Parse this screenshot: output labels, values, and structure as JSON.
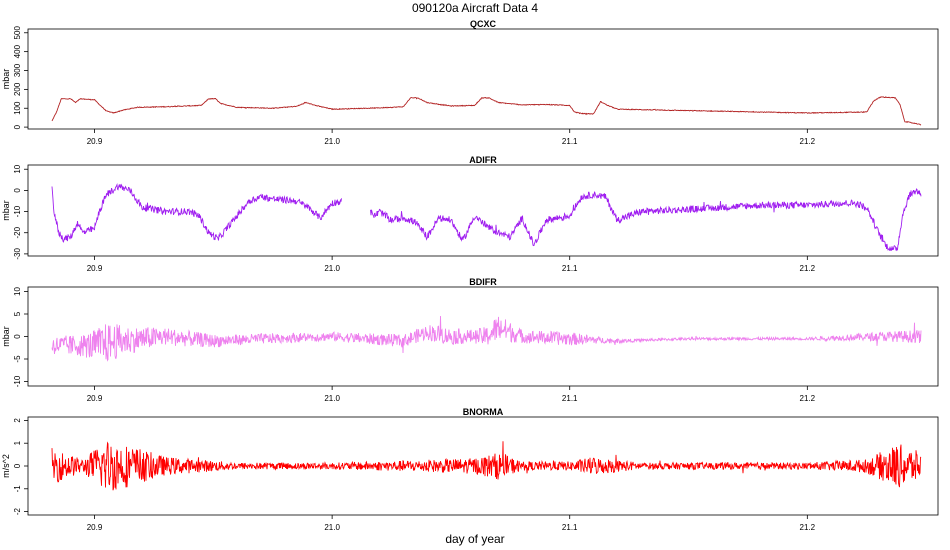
{
  "title": "090120a   Aircraft Data 4",
  "chart_data": {
    "type": "line",
    "xlabel": "day of year",
    "x_ticks": [
      20.9,
      21.0,
      21.1,
      21.2
    ],
    "x_tick_labels": [
      "20.9",
      "21.0",
      "21.1",
      "21.2"
    ],
    "xlim": [
      20.872,
      21.255
    ],
    "panels": [
      {
        "title": "QCXC",
        "ylabel": "mbar",
        "color": "#b22222",
        "ylim": [
          -10,
          520
        ],
        "y_ticks": [
          0,
          100,
          200,
          300,
          400,
          500
        ],
        "y_tick_labels": [
          "0",
          "100",
          "200",
          "300",
          "400",
          "500"
        ],
        "noise": 2,
        "x": [
          20.882,
          20.884,
          20.886,
          20.89,
          20.892,
          20.894,
          20.9,
          20.902,
          20.905,
          20.908,
          20.912,
          20.918,
          20.93,
          20.945,
          20.948,
          20.951,
          20.953,
          20.96,
          20.975,
          20.985,
          20.989,
          20.993,
          21.0,
          21.02,
          21.03,
          21.033,
          21.036,
          21.04,
          21.05,
          21.06,
          21.063,
          21.066,
          21.07,
          21.08,
          21.09,
          21.1,
          21.102,
          21.105,
          21.11,
          21.113,
          21.116,
          21.12,
          21.14,
          21.16,
          21.18,
          21.2,
          21.225,
          21.228,
          21.231,
          21.237,
          21.239,
          21.241,
          21.245,
          21.247,
          21.248
        ],
        "y": [
          30,
          80,
          150,
          150,
          130,
          150,
          145,
          120,
          85,
          75,
          90,
          105,
          108,
          115,
          150,
          150,
          125,
          105,
          100,
          110,
          130,
          115,
          95,
          102,
          108,
          155,
          155,
          130,
          112,
          115,
          155,
          155,
          130,
          118,
          120,
          115,
          80,
          72,
          70,
          135,
          115,
          95,
          90,
          85,
          80,
          75,
          80,
          140,
          160,
          155,
          120,
          30,
          20,
          15,
          12
        ]
      },
      {
        "title": "ADIFR",
        "ylabel": "mbar",
        "color": "#a020f0",
        "ylim": [
          -31,
          12
        ],
        "y_ticks": [
          -30,
          -20,
          -10,
          0,
          10
        ],
        "y_tick_labels": [
          "-30",
          "-20",
          "-10",
          "0",
          "10"
        ],
        "noise": 1.6,
        "gap": [
          21.004,
          21.016
        ],
        "x": [
          20.882,
          20.883,
          20.884,
          20.885,
          20.887,
          20.89,
          20.893,
          20.895,
          20.9,
          20.902,
          20.905,
          20.91,
          20.915,
          20.92,
          20.93,
          20.94,
          20.944,
          20.948,
          20.952,
          20.96,
          20.965,
          20.97,
          20.975,
          20.985,
          20.99,
          20.995,
          21.0,
          21.004,
          21.016,
          21.018,
          21.02,
          21.025,
          21.03,
          21.035,
          21.04,
          21.045,
          21.05,
          21.055,
          21.06,
          21.065,
          21.07,
          21.075,
          21.08,
          21.085,
          21.09,
          21.095,
          21.1,
          21.105,
          21.11,
          21.115,
          21.12,
          21.13,
          21.15,
          21.18,
          21.2,
          21.215,
          21.22,
          21.225,
          21.23,
          21.233,
          21.236,
          21.238,
          21.24,
          21.243,
          21.246,
          21.248
        ],
        "y": [
          5,
          -12,
          -15,
          -20,
          -23,
          -22,
          -15,
          -20,
          -18,
          -10,
          -2,
          2,
          0,
          -8,
          -10,
          -10,
          -12,
          -20,
          -23,
          -12,
          -5,
          -3,
          -4,
          -5,
          -8,
          -13,
          -6,
          -5,
          -10,
          -12,
          -10,
          -14,
          -13,
          -15,
          -22,
          -13,
          -14,
          -24,
          -12,
          -17,
          -20,
          -22,
          -13,
          -26,
          -14,
          -13,
          -12,
          -3,
          -2,
          -3,
          -14,
          -10,
          -9,
          -7,
          -7,
          -6,
          -6,
          -8,
          -20,
          -26,
          -28,
          -27,
          -12,
          -2,
          0,
          -2
        ]
      },
      {
        "title": "BDIFR",
        "ylabel": "mbar",
        "color": "#ee82ee",
        "ylim": [
          -11,
          11
        ],
        "y_ticks": [
          -10,
          -5,
          0,
          5,
          10
        ],
        "y_tick_labels": [
          "-10",
          "-5",
          "0",
          "5",
          "10"
        ],
        "noise_profile": [
          [
            20.882,
            2.0
          ],
          [
            20.895,
            2.5
          ],
          [
            20.905,
            4.5
          ],
          [
            20.915,
            3.0
          ],
          [
            20.93,
            2.0
          ],
          [
            20.96,
            1.2
          ],
          [
            21.0,
            1.0
          ],
          [
            21.035,
            1.5
          ],
          [
            21.045,
            2.0
          ],
          [
            21.06,
            1.5
          ],
          [
            21.07,
            3.0
          ],
          [
            21.08,
            1.5
          ],
          [
            21.1,
            1.5
          ],
          [
            21.115,
            0.6
          ],
          [
            21.13,
            0.3
          ],
          [
            21.2,
            0.3
          ],
          [
            21.23,
            1.0
          ],
          [
            21.248,
            1.5
          ]
        ],
        "x": [
          20.882,
          20.9,
          20.91,
          20.93,
          20.95,
          20.97,
          21.0,
          21.03,
          21.04,
          21.05,
          21.065,
          21.07,
          21.08,
          21.1,
          21.12,
          21.15,
          21.2,
          21.23,
          21.248
        ],
        "y": [
          -2,
          -2,
          -1,
          0,
          -1,
          -0.5,
          0,
          -1,
          1,
          0,
          0,
          2,
          0,
          -0.5,
          -1,
          -0.5,
          -0.5,
          0,
          0
        ]
      },
      {
        "title": "BNORMA",
        "ylabel": "m/s^2",
        "color": "#ff0000",
        "ylim": [
          -2.15,
          2.15
        ],
        "y_ticks": [
          -2,
          -1,
          0,
          1,
          2
        ],
        "y_tick_labels": [
          "-2",
          "-1",
          "0",
          "1",
          "2"
        ],
        "noise_profile": [
          [
            20.882,
            0.8
          ],
          [
            20.895,
            0.3
          ],
          [
            20.905,
            1.2
          ],
          [
            20.915,
            0.9
          ],
          [
            20.93,
            0.4
          ],
          [
            20.96,
            0.15
          ],
          [
            21.0,
            0.15
          ],
          [
            21.035,
            0.25
          ],
          [
            21.06,
            0.35
          ],
          [
            21.07,
            0.6
          ],
          [
            21.08,
            0.2
          ],
          [
            21.095,
            0.2
          ],
          [
            21.1,
            0.2
          ],
          [
            21.11,
            0.4
          ],
          [
            21.13,
            0.15
          ],
          [
            21.2,
            0.15
          ],
          [
            21.225,
            0.3
          ],
          [
            21.238,
            1.0
          ],
          [
            21.248,
            0.6
          ]
        ],
        "x": [
          20.882,
          21.248
        ],
        "y": [
          0,
          0
        ]
      }
    ]
  }
}
